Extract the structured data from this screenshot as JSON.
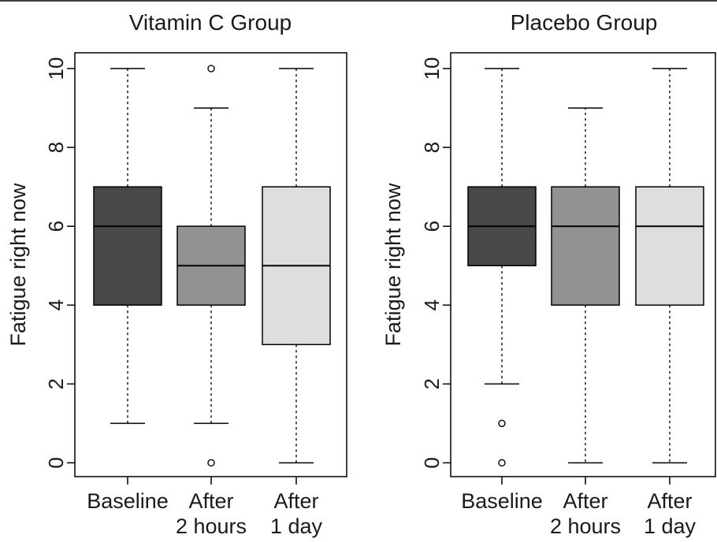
{
  "chart_data": [
    {
      "type": "boxplot",
      "title": "Vitamin C Group",
      "ylabel": "Fatigue right now",
      "xlabel": "",
      "ylim": [
        -0.35,
        10.4
      ],
      "yticks": [
        0,
        2,
        4,
        6,
        8,
        10
      ],
      "categories": [
        "Baseline",
        "After\n2 hours",
        "After\n1 day"
      ],
      "colors": [
        "#484848",
        "#929292",
        "#dedede"
      ],
      "boxes": [
        {
          "whisker_low": 1,
          "q1": 4,
          "median": 6,
          "q3": 7,
          "whisker_high": 10,
          "outliers": []
        },
        {
          "whisker_low": 1,
          "q1": 4,
          "median": 5,
          "q3": 6,
          "whisker_high": 9,
          "outliers": [
            0,
            10
          ]
        },
        {
          "whisker_low": 0,
          "q1": 3,
          "median": 5,
          "q3": 7,
          "whisker_high": 10,
          "outliers": []
        }
      ]
    },
    {
      "type": "boxplot",
      "title": "Placebo Group",
      "ylabel": "Fatigue right now",
      "xlabel": "",
      "ylim": [
        -0.35,
        10.4
      ],
      "yticks": [
        0,
        2,
        4,
        6,
        8,
        10
      ],
      "categories": [
        "Baseline",
        "After\n2 hours",
        "After\n1 day"
      ],
      "colors": [
        "#484848",
        "#929292",
        "#dedede"
      ],
      "boxes": [
        {
          "whisker_low": 2,
          "q1": 5,
          "median": 6,
          "q3": 7,
          "whisker_high": 10,
          "outliers": [
            0,
            1
          ]
        },
        {
          "whisker_low": 0,
          "q1": 4,
          "median": 6,
          "q3": 7,
          "whisker_high": 9,
          "outliers": []
        },
        {
          "whisker_low": 0,
          "q1": 4,
          "median": 6,
          "q3": 7,
          "whisker_high": 10,
          "outliers": []
        }
      ]
    }
  ]
}
